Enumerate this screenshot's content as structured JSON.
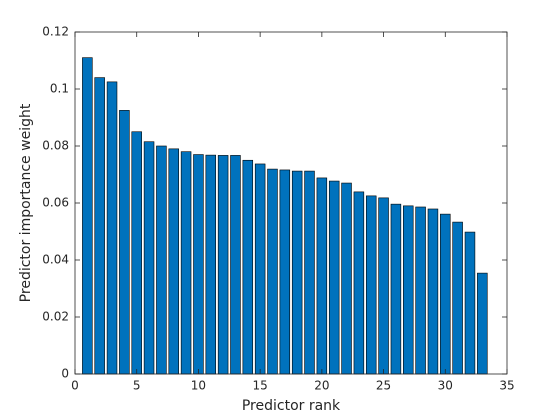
{
  "chart_data": {
    "type": "bar",
    "xlabel": "Predictor rank",
    "ylabel": "Predictor importance weight",
    "x": [
      1,
      2,
      3,
      4,
      5,
      6,
      7,
      8,
      9,
      10,
      11,
      12,
      13,
      14,
      15,
      16,
      17,
      18,
      19,
      20,
      21,
      22,
      23,
      24,
      25,
      26,
      27,
      28,
      29,
      30,
      31,
      32,
      33
    ],
    "values": [
      0.111,
      0.104,
      0.1025,
      0.0925,
      0.085,
      0.0815,
      0.08,
      0.079,
      0.078,
      0.077,
      0.0768,
      0.0767,
      0.0767,
      0.075,
      0.0737,
      0.0719,
      0.0716,
      0.0712,
      0.0712,
      0.0688,
      0.0677,
      0.067,
      0.0639,
      0.0625,
      0.0618,
      0.0596,
      0.059,
      0.0586,
      0.0579,
      0.0561,
      0.0533,
      0.0498,
      0.0354
    ],
    "color": "#0072bd",
    "xlim": [
      0,
      35
    ],
    "xticks": [
      0,
      5,
      10,
      15,
      20,
      25,
      30,
      35
    ],
    "ylim": [
      0,
      0.12
    ],
    "yticks": [
      0,
      0.02,
      0.04,
      0.06,
      0.08,
      0.1,
      0.12
    ]
  }
}
